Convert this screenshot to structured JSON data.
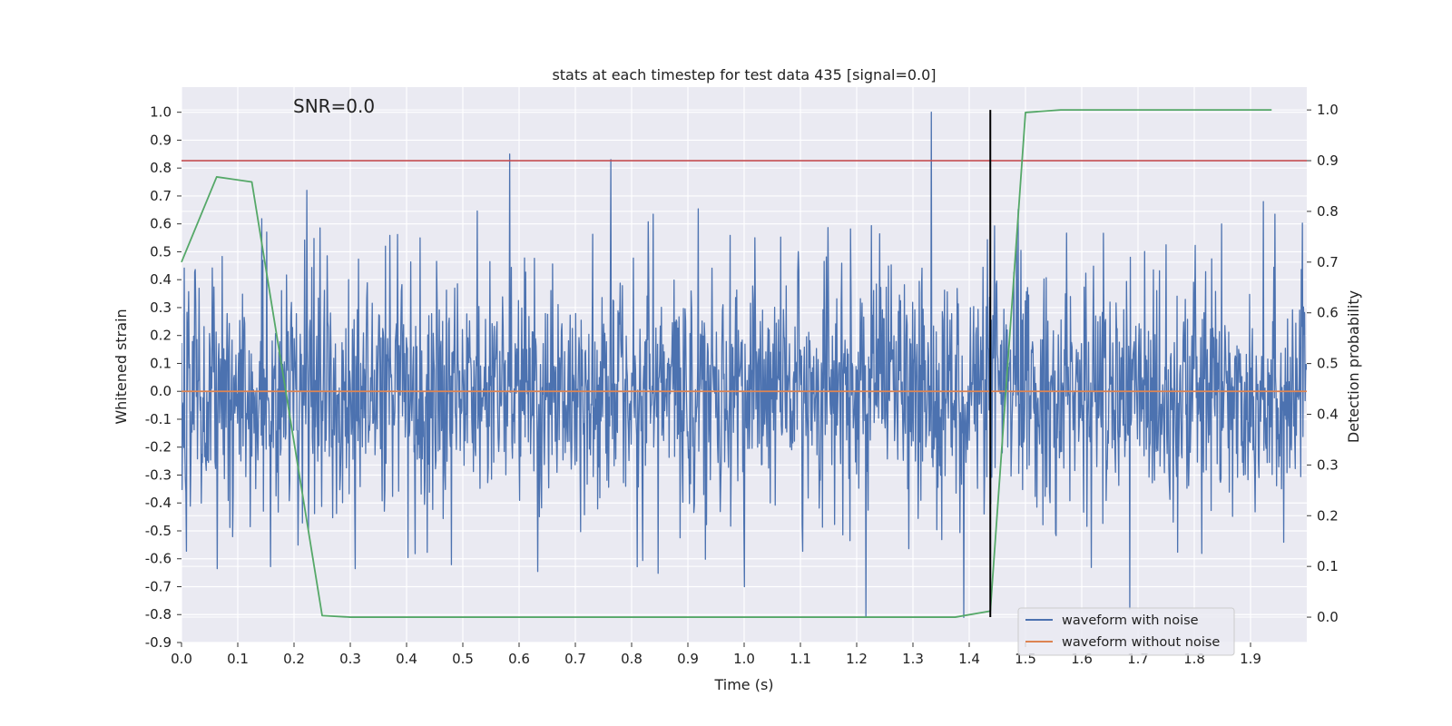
{
  "chart_data": {
    "type": "line",
    "title": "stats at each timestep for test data 435 [signal=0.0]",
    "annotation": "SNR=0.0",
    "xlabel": "Time (s)",
    "ylabel": "Whitened strain",
    "y2label": "Detection probability",
    "xlim": [
      0.0,
      2.0
    ],
    "ylim": [
      -0.9,
      1.09
    ],
    "y2lim": [
      -0.05,
      1.045
    ],
    "grid": true,
    "legend_position": "bottom-right",
    "x_ticks": [
      "0.0",
      "0.1",
      "0.2",
      "0.3",
      "0.4",
      "0.5",
      "0.6",
      "0.7",
      "0.8",
      "0.9",
      "1.0",
      "1.1",
      "1.2",
      "1.3",
      "1.4",
      "1.5",
      "1.6",
      "1.7",
      "1.8",
      "1.9"
    ],
    "y_ticks": [
      "-0.9",
      "-0.8",
      "-0.7",
      "-0.6",
      "-0.5",
      "-0.4",
      "-0.3",
      "-0.2",
      "-0.1",
      "0.0",
      "0.1",
      "0.2",
      "0.3",
      "0.4",
      "0.5",
      "0.6",
      "0.7",
      "0.8",
      "0.9",
      "1.0"
    ],
    "y2_ticks": [
      "0.0",
      "0.1",
      "0.2",
      "0.3",
      "0.4",
      "0.5",
      "0.6",
      "0.7",
      "0.8",
      "0.9",
      "1.0"
    ],
    "series": [
      {
        "name": "waveform with noise",
        "color": "#4c72b0",
        "axis": "left",
        "kind": "noise",
        "n_points": 2048,
        "approx_range": [
          -0.82,
          1.0
        ],
        "peaks": [
          {
            "x": 0.583,
            "y": 0.85
          },
          {
            "x": 0.763,
            "y": 0.83
          },
          {
            "x": 1.333,
            "y": 1.0
          },
          {
            "x": 1.216,
            "y": -0.81
          },
          {
            "x": 1.39,
            "y": -0.81
          },
          {
            "x": 1.685,
            "y": -0.78
          },
          {
            "x": 0.223,
            "y": 0.72
          },
          {
            "x": 1.923,
            "y": 0.68
          },
          {
            "x": 1.0,
            "y": -0.7
          }
        ]
      },
      {
        "name": "waveform without noise",
        "color": "#dd8452",
        "axis": "left",
        "x": [
          0.0,
          2.0
        ],
        "y": [
          0.0,
          0.0
        ]
      },
      {
        "name": "detection probability",
        "color": "#55a868",
        "axis": "right",
        "x": [
          0.0,
          0.0625,
          0.125,
          0.25,
          0.3,
          1.375,
          1.4375,
          1.5,
          1.5625,
          1.9375
        ],
        "y": [
          0.7,
          0.868,
          0.858,
          0.003,
          0.0,
          0.0,
          0.012,
          0.995,
          1.0,
          1.0
        ]
      }
    ],
    "threshold_line": {
      "axis": "right",
      "y": 0.9,
      "color": "#c44e52"
    },
    "marker_line": {
      "x": 1.4375,
      "y2_range": [
        0.0,
        1.0
      ],
      "color": "#000000"
    }
  }
}
